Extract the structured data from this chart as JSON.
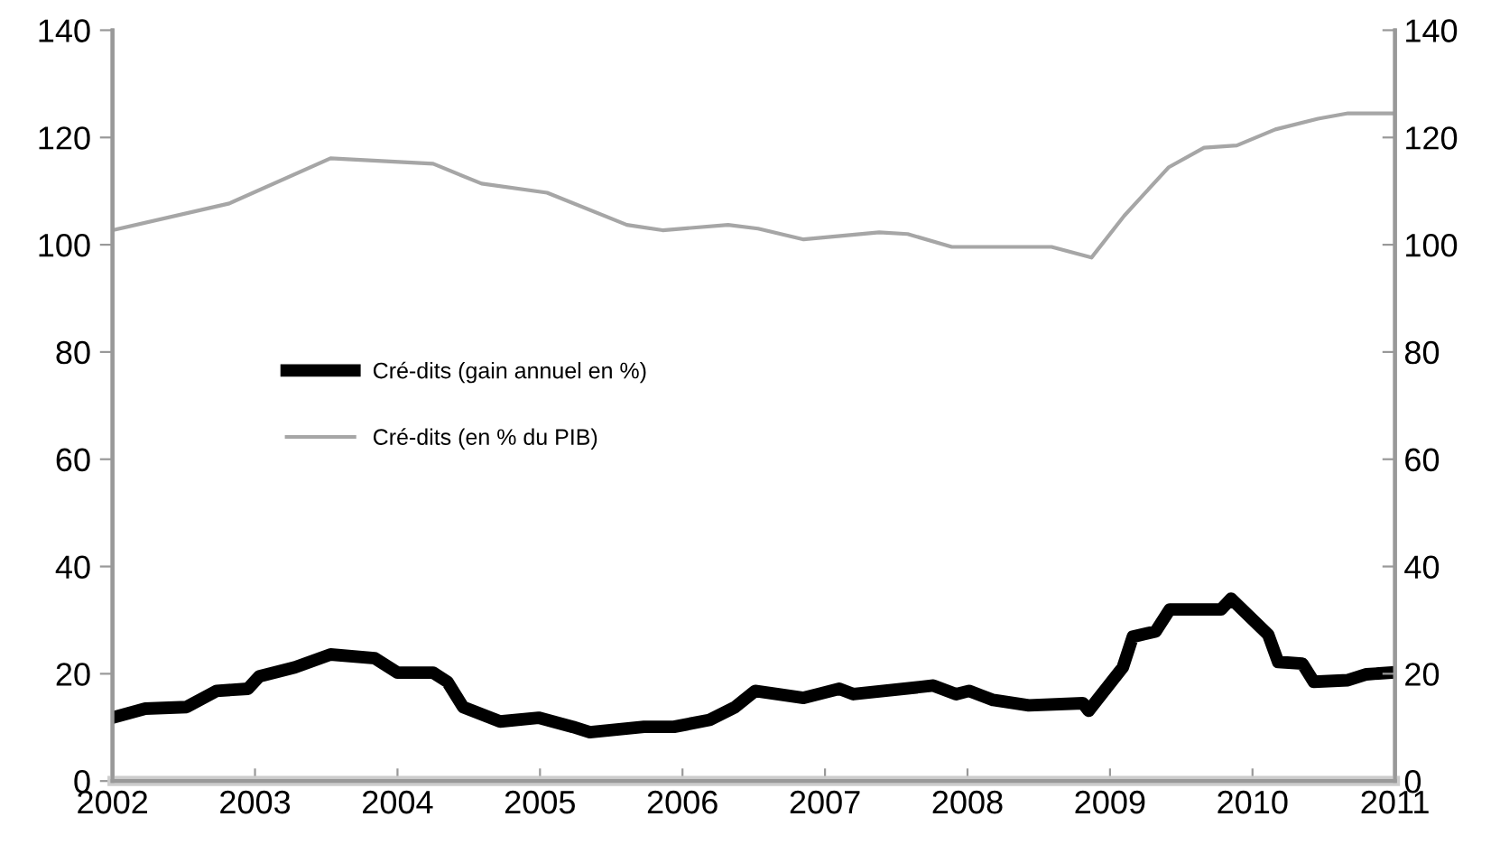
{
  "chart_data": {
    "type": "line",
    "xlim": [
      2002,
      2011
    ],
    "xticks": [
      2002,
      2003,
      2004,
      2005,
      2006,
      2007,
      2008,
      2009,
      2010,
      2011
    ],
    "ylim": [
      0,
      140
    ],
    "yticks": [
      0,
      20,
      40,
      60,
      80,
      100,
      120,
      140
    ],
    "y2lim": [
      0,
      140
    ],
    "y2ticks": [
      0,
      20,
      40,
      60,
      80,
      100,
      120,
      140
    ],
    "grid": false,
    "legend": "center left",
    "marker": "none",
    "line_style": "solid",
    "series": [
      {
        "name": "Cré-dits (gain annuel en %)",
        "color": "#000000",
        "x": [
          2002.04,
          2002.23,
          2002.52,
          2002.73,
          2002.95,
          2003.03,
          2003.28,
          2003.53,
          2003.84,
          2004.0,
          2004.25,
          2004.35,
          2004.46,
          2004.72,
          2004.99,
          2005.23,
          2005.35,
          2005.73,
          2005.94,
          2006.19,
          2006.37,
          2006.51,
          2006.85,
          2007.1,
          2007.2,
          2007.76,
          2007.92,
          2008.01,
          2008.18,
          2008.43,
          2008.81,
          2008.85,
          2009.09,
          2009.16,
          2009.32,
          2009.42,
          2009.78,
          2009.85,
          2010.11,
          2010.18,
          2010.35,
          2010.43,
          2010.67,
          2010.8,
          2010.96
        ],
        "values": [
          12.1,
          13.5,
          13.8,
          16.8,
          17.2,
          19.5,
          21.2,
          23.6,
          22.9,
          20.2,
          20.2,
          18.5,
          13.8,
          11.1,
          11.8,
          10.1,
          9.1,
          10.1,
          10.1,
          11.4,
          13.8,
          16.8,
          15.5,
          17.2,
          16.2,
          17.8,
          16.2,
          16.8,
          15.1,
          14.1,
          14.5,
          13.1,
          21.2,
          26.9,
          27.9,
          32.0,
          32.0,
          34.0,
          27.3,
          22.2,
          21.9,
          18.5,
          18.8,
          19.9,
          20.2
        ]
      },
      {
        "name": "Cré-dits (en % du PIB)",
        "color": "#a6a6a6",
        "x": [
          2002.0,
          2002.82,
          2003.53,
          2004.25,
          2004.59,
          2005.05,
          2005.61,
          2005.86,
          2006.32,
          2006.53,
          2006.85,
          2007.38,
          2007.58,
          2007.89,
          2008.59,
          2008.87,
          2009.1,
          2009.41,
          2009.66,
          2009.89,
          2010.16,
          2010.46,
          2010.67,
          2011.0
        ],
        "values": [
          102.7,
          107.7,
          116.1,
          115.1,
          111.4,
          109.7,
          103.7,
          102.7,
          103.7,
          103.0,
          101.0,
          102.3,
          102.0,
          99.6,
          99.6,
          97.6,
          105.4,
          114.4,
          118.1,
          118.5,
          121.5,
          123.5,
          124.5,
          124.5
        ]
      }
    ]
  }
}
